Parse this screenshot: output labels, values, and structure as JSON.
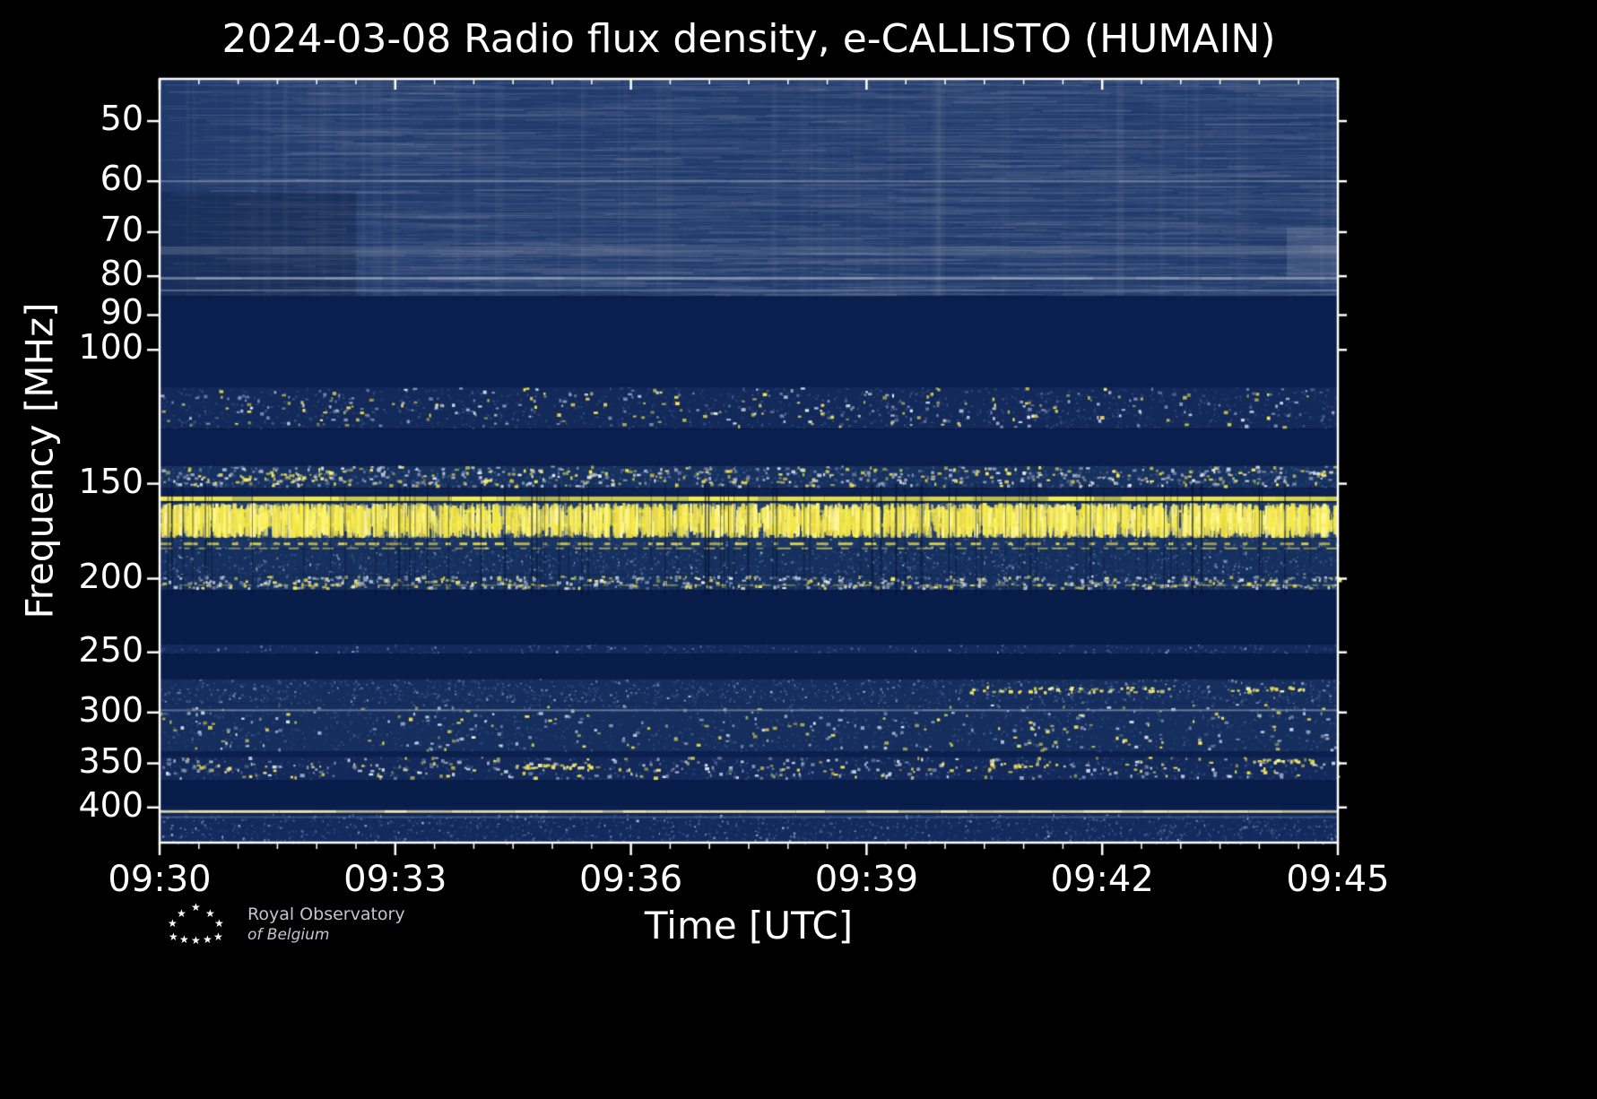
{
  "chart_data": {
    "type": "heatmap",
    "title": "2024-03-08 Radio flux density, e-CALLISTO (HUMAIN)",
    "xlabel": "Time [UTC]",
    "ylabel": "Frequency [MHz]",
    "observation": {
      "date": "2024-03-08",
      "quantity": "Radio flux density",
      "network": "e-CALLISTO",
      "station": "HUMAIN"
    },
    "x_axis": {
      "range_minutes": [
        0,
        15
      ],
      "start_time": "09:30",
      "end_time": "09:45",
      "minor_step_minutes": 0.5,
      "ticks": [
        {
          "t": 0,
          "label": "09:30"
        },
        {
          "t": 3,
          "label": "09:33"
        },
        {
          "t": 6,
          "label": "09:36"
        },
        {
          "t": 9,
          "label": "09:39"
        },
        {
          "t": 12,
          "label": "09:42"
        },
        {
          "t": 15,
          "label": "09:45"
        }
      ]
    },
    "y_axis": {
      "scale": "log",
      "range_mhz": [
        44,
        445
      ],
      "ticks": [
        50,
        60,
        70,
        80,
        90,
        100,
        150,
        200,
        250,
        300,
        350,
        400
      ]
    },
    "colors": {
      "background": "#000000",
      "frame": "#ffffff",
      "deep_blue": "#091d4a",
      "noise_blue": "#15305e",
      "rfi_yellow": "#f5ea45",
      "speckle_white": "#cdd3e0"
    },
    "bands": [
      {
        "f1": 44,
        "f2": 85,
        "base": "#203a6b",
        "style": "streak",
        "density": 0.9
      },
      {
        "f1": 85,
        "f2": 112,
        "base": "#0a1f4e",
        "style": "flat",
        "density": 0
      },
      {
        "f1": 112,
        "f2": 127,
        "base": "#13295a",
        "style": "speckle",
        "density": 0.3
      },
      {
        "f1": 127,
        "f2": 142,
        "base": "#0a1f4e",
        "style": "flat",
        "density": 0
      },
      {
        "f1": 142,
        "f2": 152,
        "base": "#17315f",
        "style": "speckle",
        "density": 0.55
      },
      {
        "f1": 152,
        "f2": 156,
        "base": "#0c2150",
        "style": "flat",
        "density": 0
      },
      {
        "f1": 156,
        "f2": 159,
        "base": "#0e2452",
        "style": "flat",
        "density": 0
      },
      {
        "f1": 159,
        "f2": 177,
        "base": "#253f6d",
        "style": "heavy",
        "density": 0.85
      },
      {
        "f1": 177,
        "f2": 183,
        "base": "#1a3463",
        "style": "bluenoise",
        "density": 0.35
      },
      {
        "f1": 183,
        "f2": 198,
        "base": "#15305e",
        "style": "bluenoise",
        "density": 0.45
      },
      {
        "f1": 198,
        "f2": 207,
        "base": "#15305e",
        "style": "speckle",
        "density": 0.5
      },
      {
        "f1": 207,
        "f2": 244,
        "base": "#091d4a",
        "style": "flat",
        "density": 0
      },
      {
        "f1": 244,
        "f2": 251,
        "base": "#122a5c",
        "style": "bluenoise",
        "density": 0.35
      },
      {
        "f1": 251,
        "f2": 271,
        "base": "#091d4a",
        "style": "flat",
        "density": 0
      },
      {
        "f1": 271,
        "f2": 292,
        "base": "#152e5e",
        "style": "bluenoise",
        "density": 0.5
      },
      {
        "f1": 292,
        "f2": 338,
        "base": "#152e5e",
        "style": "speckle",
        "density": 0.28
      },
      {
        "f1": 338,
        "f2": 343,
        "base": "#0a1f4e",
        "style": "flat",
        "density": 0
      },
      {
        "f1": 343,
        "f2": 368,
        "base": "#13295a",
        "style": "speckle",
        "density": 0.32
      },
      {
        "f1": 368,
        "f2": 397,
        "base": "#091d4a",
        "style": "flat",
        "density": 0
      },
      {
        "f1": 397,
        "f2": 408,
        "base": "#0a1f4e",
        "style": "flat",
        "density": 0
      },
      {
        "f1": 408,
        "f2": 445,
        "base": "#122a5c",
        "style": "bluenoise",
        "density": 0.45
      }
    ],
    "lines": [
      {
        "f": 60,
        "color": "#8d96ae",
        "width": 2,
        "alpha": 0.7,
        "style": "solid"
      },
      {
        "f": 74,
        "color": "#9aa2b6",
        "width": 9,
        "alpha": 0.3,
        "style": "solid"
      },
      {
        "f": 80.5,
        "color": "#a8b0c2",
        "width": 3,
        "alpha": 0.75,
        "style": "solid"
      },
      {
        "f": 83.5,
        "color": "#8d96ae",
        "width": 2,
        "alpha": 0.55,
        "style": "solid"
      },
      {
        "f": 157,
        "color": "#f9f04a",
        "width": 5,
        "alpha": 1,
        "style": "solid"
      },
      {
        "f": 163,
        "color": "#f5ea45",
        "width": 3,
        "alpha": 0.85,
        "style": "dashed"
      },
      {
        "f": 170,
        "color": "#f5ea45",
        "width": 4,
        "alpha": 0.8,
        "style": "dashed"
      },
      {
        "f": 180,
        "color": "#f2e74c",
        "width": 3,
        "alpha": 0.9,
        "style": "dashed"
      },
      {
        "f": 182.5,
        "color": "#e8dd52",
        "width": 2,
        "alpha": 0.7,
        "style": "dashed"
      },
      {
        "f": 204,
        "color": "#eadf55",
        "width": 2,
        "alpha": 0.5,
        "style": "dashed"
      },
      {
        "f": 298,
        "color": "#9aa3b8",
        "width": 2,
        "alpha": 0.7,
        "style": "solid"
      },
      {
        "f": 405,
        "color": "#f6edae",
        "width": 3,
        "alpha": 1,
        "style": "solid"
      },
      {
        "f": 412,
        "color": "#6b7da3",
        "width": 2,
        "alpha": 0.55,
        "style": "solid"
      }
    ],
    "patches": [
      {
        "t1": 0,
        "t2": 2.5,
        "f1": 62,
        "f2": 85,
        "color": "rgba(10,22,55,0.30)"
      },
      {
        "t1": 14.35,
        "t2": 15,
        "f1": 69,
        "f2": 80,
        "color": "rgba(160,168,190,0.22)"
      }
    ],
    "clusters": [
      {
        "t1": 10.3,
        "t2": 12.9,
        "f1": 277,
        "f2": 284,
        "density": 0.5
      },
      {
        "t1": 13.6,
        "t2": 14.6,
        "f1": 277,
        "f2": 283,
        "density": 0.5
      },
      {
        "t1": 4.5,
        "t2": 5.5,
        "f1": 350,
        "f2": 357,
        "density": 0.6
      },
      {
        "t1": 10.5,
        "t2": 11.3,
        "f1": 349,
        "f2": 356,
        "density": 0.5
      },
      {
        "t1": 13.9,
        "t2": 14.7,
        "f1": 344,
        "f2": 351,
        "density": 0.7
      },
      {
        "t1": 1.0,
        "t2": 2.2,
        "f1": 143,
        "f2": 150,
        "density": 0.6
      }
    ],
    "dark_columns": {
      "f1": 150,
      "f2": 210,
      "count": 80
    }
  },
  "footer": {
    "logo": {
      "line1": "Royal Observatory",
      "line2": "of Belgium",
      "stars": [
        [
          31,
          0
        ],
        [
          15,
          7
        ],
        [
          47,
          7
        ],
        [
          5,
          18
        ],
        [
          57,
          18
        ],
        [
          6,
          33
        ],
        [
          18,
          36
        ],
        [
          31,
          37
        ],
        [
          44,
          36
        ],
        [
          56,
          33
        ]
      ]
    }
  }
}
